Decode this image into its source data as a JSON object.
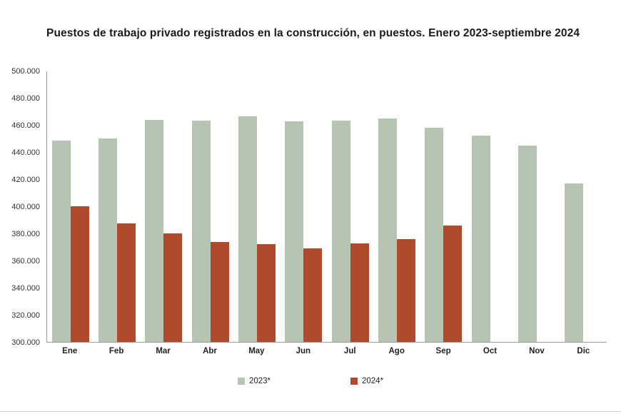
{
  "chart_data": {
    "type": "bar",
    "title": "Puestos de trabajo privado registrados en la construcción, en puestos. Enero 2023-septiembre 2024",
    "categories": [
      "Ene",
      "Feb",
      "Mar",
      "Abr",
      "May",
      "Jun",
      "Jul",
      "Ago",
      "Sep",
      "Oct",
      "Nov",
      "Dic"
    ],
    "series": [
      {
        "name": "2023*",
        "color": "#b6c5b1",
        "values": [
          449000,
          450500,
          464000,
          463500,
          467000,
          463000,
          463500,
          465000,
          458500,
          452500,
          445000,
          417000
        ]
      },
      {
        "name": "2024*",
        "color": "#b04a2c",
        "values": [
          400500,
          387500,
          380000,
          374000,
          372500,
          369000,
          373000,
          376000,
          386000,
          null,
          null,
          null
        ]
      }
    ],
    "xlabel": "",
    "ylabel": "",
    "ylim": [
      300000,
      500000
    ],
    "ytick_step": 20000,
    "ytick_labels": [
      "300.000",
      "320.000",
      "340.000",
      "360.000",
      "380.000",
      "400.000",
      "420.000",
      "440.000",
      "460.000",
      "480.000",
      "500.000"
    ],
    "grid": false,
    "legend_position": "bottom"
  }
}
